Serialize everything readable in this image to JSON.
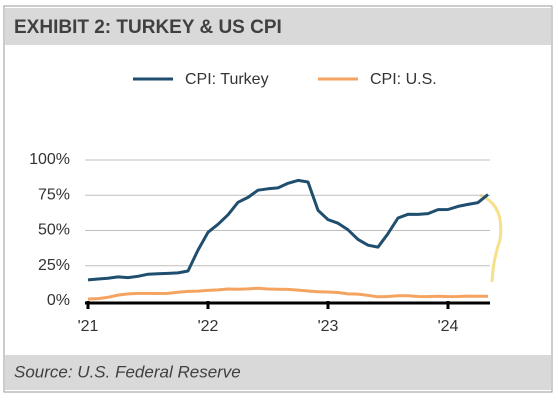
{
  "chart_data": {
    "type": "line",
    "title": "EXHIBIT 2: TURKEY & US CPI",
    "source": "Source: U.S. Federal Reserve",
    "categories": [
      "'21",
      null,
      null,
      null,
      null,
      null,
      null,
      null,
      null,
      null,
      null,
      null,
      "'22",
      null,
      null,
      null,
      null,
      null,
      null,
      null,
      null,
      null,
      null,
      null,
      "'23",
      null,
      null,
      null,
      null,
      null,
      null,
      null,
      null,
      null,
      null,
      null,
      "'24",
      null,
      null,
      null,
      null
    ],
    "series": [
      {
        "name": "CPI: Turkey",
        "color": "#1f4e6e",
        "values": [
          15,
          15.6,
          16.2,
          17.1,
          16.6,
          17.5,
          19,
          19.3,
          19.6,
          19.9,
          21.3,
          36.1,
          48.7,
          54.4,
          61.1,
          70,
          73.5,
          78.6,
          79.6,
          80.2,
          83.5,
          85.5,
          84.4,
          64.3,
          57.7,
          55.2,
          50.5,
          43.7,
          39.6,
          38.2,
          47.8,
          58.9,
          61.5,
          61.4,
          62,
          64.8,
          64.9,
          67.1,
          68.5,
          69.8,
          75.5
        ]
      },
      {
        "name": "CPI: U.S.",
        "color": "#f4a460",
        "values": [
          1.4,
          1.7,
          2.6,
          4.2,
          5,
          5.4,
          5.4,
          5.3,
          5.4,
          6.2,
          6.8,
          7,
          7.5,
          7.9,
          8.5,
          8.3,
          8.6,
          9.1,
          8.5,
          8.3,
          8.2,
          7.7,
          7.1,
          6.5,
          6.4,
          6,
          5,
          4.9,
          4,
          3,
          3.2,
          3.7,
          3.7,
          3.2,
          3.1,
          3.4,
          3.1,
          3.2,
          3.5,
          3.4,
          3.3
        ]
      }
    ],
    "ylim": [
      0,
      100
    ],
    "yticks": [
      {
        "value": 0,
        "label": "0%"
      },
      {
        "value": 25,
        "label": "25%"
      },
      {
        "value": 50,
        "label": "50%"
      },
      {
        "value": 75,
        "label": "75%"
      },
      {
        "value": 100,
        "label": "100%"
      }
    ],
    "grid": true
  }
}
